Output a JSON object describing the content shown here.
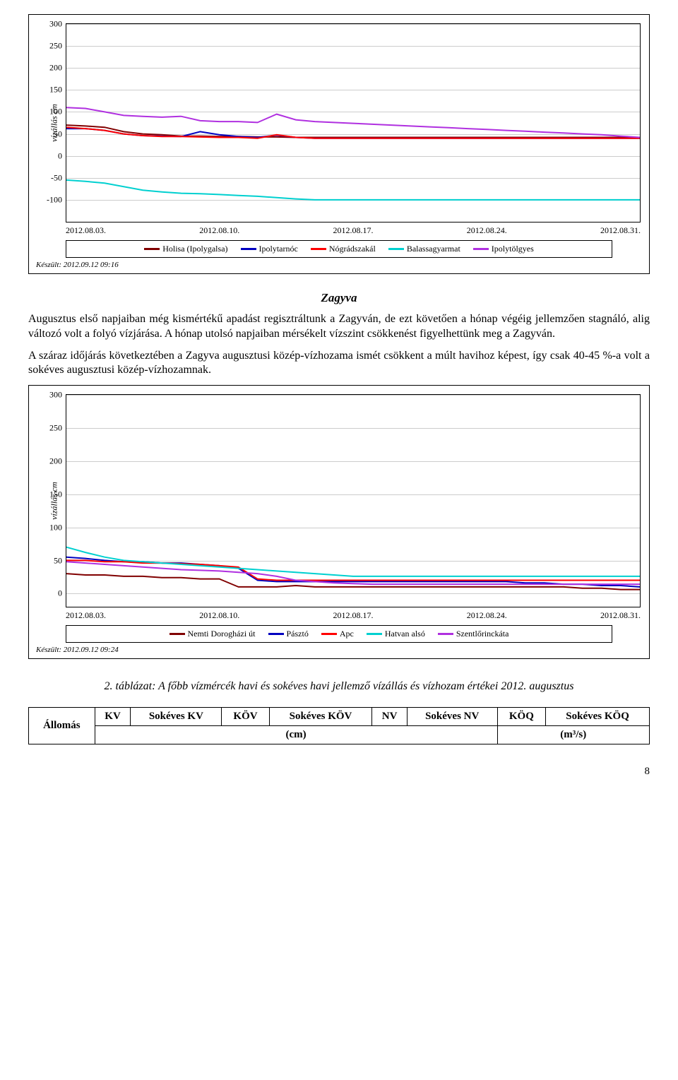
{
  "chart1": {
    "yLabel": "vízállás cm",
    "yTicks": [
      -100,
      -50,
      0,
      50,
      100,
      150,
      200,
      250,
      300
    ],
    "ymin": -150,
    "ymax": 300,
    "xTicks": [
      "2012.08.03.",
      "2012.08.10.",
      "2012.08.17.",
      "2012.08.24.",
      "2012.08.31."
    ],
    "grid_color": "#cccccc",
    "series": [
      {
        "name": "Holisa (Ipolygalsa)",
        "color": "#800000",
        "values": [
          70,
          68,
          65,
          55,
          50,
          48,
          45,
          45,
          44,
          44,
          43,
          43,
          42,
          42,
          42,
          42,
          42,
          42,
          42,
          42,
          42,
          42,
          42,
          42,
          42,
          42,
          42,
          42,
          42,
          42,
          42
        ]
      },
      {
        "name": "Ipolytarnóc",
        "color": "#0000c0",
        "values": [
          62,
          62,
          58,
          50,
          46,
          45,
          44,
          55,
          48,
          44,
          42,
          47,
          42,
          40,
          40,
          40,
          40,
          40,
          40,
          40,
          40,
          40,
          40,
          40,
          40,
          40,
          40,
          40,
          40,
          40,
          40
        ]
      },
      {
        "name": "Nógrádszakál",
        "color": "#ff0000",
        "values": [
          65,
          62,
          58,
          50,
          46,
          44,
          44,
          43,
          42,
          42,
          40,
          48,
          42,
          40,
          40,
          40,
          40,
          40,
          40,
          40,
          40,
          40,
          40,
          40,
          40,
          40,
          40,
          40,
          40,
          40,
          40
        ]
      },
      {
        "name": "Balassagyarmat",
        "color": "#00d0d0",
        "values": [
          -55,
          -58,
          -62,
          -70,
          -78,
          -82,
          -85,
          -86,
          -88,
          -90,
          -92,
          -95,
          -98,
          -100,
          -100,
          -100,
          -100,
          -100,
          -100,
          -100,
          -100,
          -100,
          -100,
          -100,
          -100,
          -100,
          -100,
          -100,
          -100,
          -100,
          -100
        ]
      },
      {
        "name": "Ipolytölgyes",
        "color": "#b030e0",
        "values": [
          110,
          108,
          100,
          92,
          90,
          88,
          90,
          80,
          78,
          78,
          76,
          95,
          82,
          78,
          76,
          74,
          72,
          70,
          68,
          66,
          64,
          62,
          60,
          58,
          56,
          54,
          52,
          50,
          48,
          45,
          42
        ]
      }
    ],
    "footer": "Készült: 2012.09.12 09:16"
  },
  "section": {
    "title": "Zagyva",
    "para1": "Augusztus első napjaiban még kismértékű apadást regisztráltunk a Zagyván, de ezt követően a hónap végéig jellemzően stagnáló, alig változó volt a folyó vízjárása. A hónap utolsó napjaiban mérsékelt vízszint csökkenést figyelhettünk meg a Zagyván.",
    "para2": "A száraz időjárás következtében a Zagyva augusztusi közép-vízhozama ismét csökkent a múlt havihoz képest, így csak 40-45 %-a volt a sokéves augusztusi közép-vízhozamnak."
  },
  "chart2": {
    "yLabel": "vízállás cm",
    "yTicks": [
      0,
      50,
      100,
      150,
      200,
      250,
      300
    ],
    "ymin": -20,
    "ymax": 300,
    "xTicks": [
      "2012.08.03.",
      "2012.08.10.",
      "2012.08.17.",
      "2012.08.24.",
      "2012.08.31."
    ],
    "grid_color": "#cccccc",
    "series": [
      {
        "name": "Nemti Dorogházi út",
        "color": "#800000",
        "values": [
          30,
          28,
          28,
          26,
          26,
          24,
          24,
          22,
          22,
          10,
          10,
          10,
          12,
          10,
          10,
          10,
          10,
          10,
          10,
          10,
          10,
          10,
          10,
          10,
          10,
          10,
          10,
          8,
          8,
          6,
          6
        ]
      },
      {
        "name": "Pásztó",
        "color": "#0000c0",
        "values": [
          55,
          53,
          50,
          48,
          48,
          46,
          46,
          44,
          42,
          38,
          20,
          18,
          18,
          18,
          18,
          18,
          18,
          18,
          18,
          18,
          18,
          18,
          18,
          18,
          16,
          16,
          14,
          14,
          12,
          12,
          10
        ]
      },
      {
        "name": "Apc",
        "color": "#ff0000",
        "values": [
          50,
          50,
          48,
          48,
          46,
          46,
          45,
          44,
          42,
          40,
          22,
          20,
          20,
          20,
          20,
          20,
          20,
          20,
          20,
          20,
          20,
          20,
          20,
          20,
          20,
          20,
          20,
          20,
          20,
          20,
          20
        ]
      },
      {
        "name": "Hatvan alsó",
        "color": "#00d0d0",
        "values": [
          70,
          62,
          55,
          50,
          48,
          46,
          44,
          42,
          40,
          38,
          36,
          34,
          32,
          30,
          28,
          26,
          26,
          26,
          26,
          26,
          26,
          26,
          26,
          26,
          26,
          26,
          26,
          26,
          26,
          26,
          26
        ]
      },
      {
        "name": "Szentlőrinckáta",
        "color": "#b030e0",
        "values": [
          48,
          46,
          44,
          42,
          40,
          38,
          36,
          35,
          34,
          32,
          30,
          26,
          20,
          18,
          16,
          15,
          14,
          14,
          14,
          14,
          14,
          14,
          14,
          14,
          14,
          14,
          14,
          14,
          14,
          14,
          14
        ]
      }
    ],
    "footer": "Készült: 2012.09.12 09:24"
  },
  "tableCaption": "2. táblázat: A főbb vízmércék havi és sokéves havi jellemző vízállás és vízhozam értékei 2012. augusztus",
  "table": {
    "headers": [
      "Állomás",
      "KV",
      "Sokéves KV",
      "KÖV",
      "Sokéves KÖV",
      "NV",
      "Sokéves NV",
      "KÖQ",
      "Sokéves KÖQ"
    ],
    "unitRow": {
      "cm": "(cm)",
      "m3s": "(m³/s)"
    }
  },
  "pageNumber": "8"
}
